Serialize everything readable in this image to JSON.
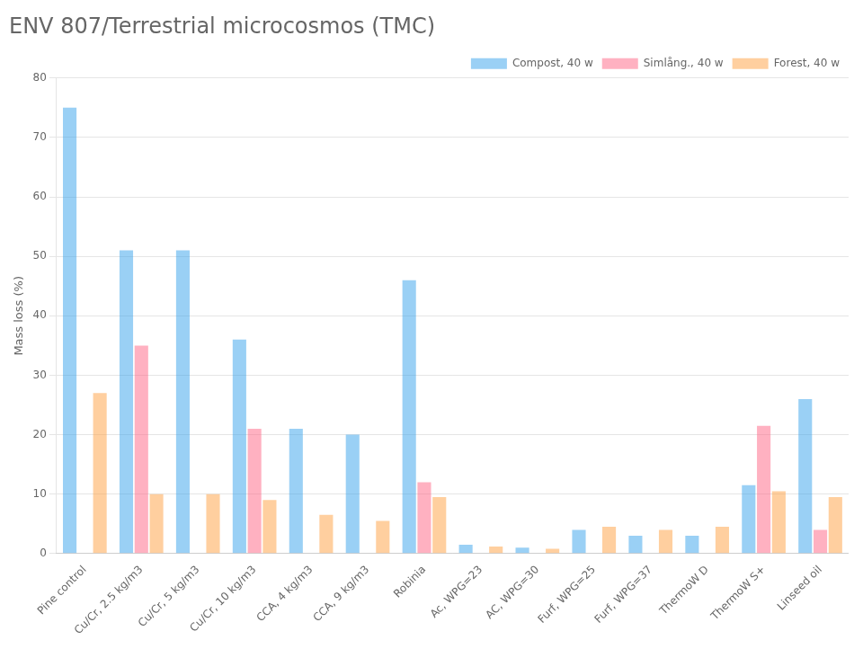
{
  "chart_data": {
    "type": "bar",
    "title": "ENV 807/Terrestrial microcosmos (TMC)",
    "ylabel": "Mass loss (%)",
    "categories": [
      "Pine control",
      "Cu/Cr, 2.5 kg/m3",
      "Cu/Cr, 5 kg/m3",
      "Cu/Cr, 10 kg/m3",
      "CCA, 4 kg/m3",
      "CCA, 9 kg/m3",
      "Robinia",
      "Ac, WPG=23",
      "AC, WPG=30",
      "Furf, WPG=25",
      "Furf, WPG=37",
      "ThermoW D",
      "ThermoW S+",
      "Linseed oil"
    ],
    "series": [
      {
        "name": "Compost, 40 w",
        "values": [
          75,
          51,
          51,
          36,
          21,
          20,
          46,
          1.5,
          1.0,
          4.0,
          3.0,
          3.0,
          11.5,
          26
        ]
      },
      {
        "name": "Simlång., 40 w",
        "values": [
          0,
          35,
          0,
          21,
          0,
          0,
          12,
          0,
          0,
          0,
          0,
          0,
          21.5,
          4.0
        ]
      },
      {
        "name": "Forest, 40 w",
        "values": [
          27,
          10,
          10,
          9,
          6.5,
          5.5,
          9.5,
          1.2,
          0.8,
          4.5,
          4.0,
          4.5,
          10.5,
          9.5
        ]
      }
    ],
    "ylim": [
      0,
      80
    ],
    "yticks": [
      0,
      10,
      20,
      30,
      40,
      50,
      60,
      70,
      80
    ],
    "grid": true,
    "legend": "upper right"
  }
}
